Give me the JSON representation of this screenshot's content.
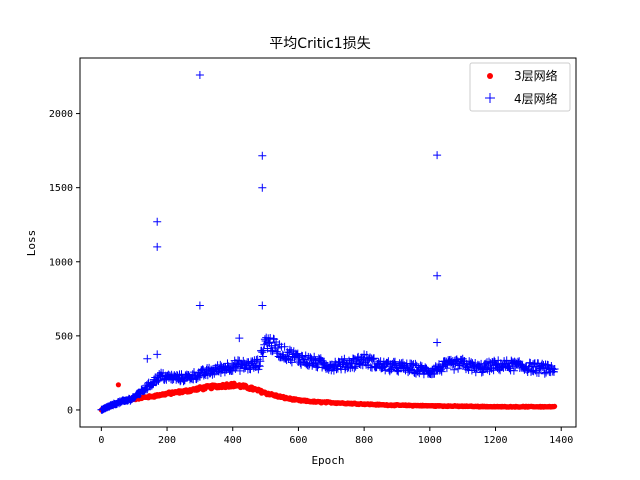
{
  "chart_data": {
    "type": "scatter",
    "title": "平均Critic1损失",
    "xlabel": "Epoch",
    "ylabel": "Loss",
    "xlim": [
      -65,
      1445
    ],
    "ylim": [
      -115,
      2375
    ],
    "xticks": [
      0,
      200,
      400,
      600,
      800,
      1000,
      1200,
      1400
    ],
    "xtick_labels": [
      "0",
      "200",
      "400",
      "600",
      "800",
      "1000",
      "1200",
      "1400"
    ],
    "yticks": [
      0,
      500,
      1000,
      1500,
      2000
    ],
    "ytick_labels": [
      "0",
      "500",
      "1000",
      "1500",
      "2000"
    ],
    "legend_position": "upper-right",
    "grid": false,
    "series": [
      {
        "name": "3层网络",
        "marker": "circle",
        "color": "#ff0000",
        "keypoints": [
          [
            0,
            0
          ],
          [
            20,
            15
          ],
          [
            40,
            35
          ],
          [
            60,
            60
          ],
          [
            80,
            70
          ],
          [
            100,
            75
          ],
          [
            150,
            90
          ],
          [
            200,
            110
          ],
          [
            250,
            125
          ],
          [
            300,
            145
          ],
          [
            350,
            160
          ],
          [
            400,
            170
          ],
          [
            450,
            150
          ],
          [
            500,
            115
          ],
          [
            550,
            85
          ],
          [
            600,
            65
          ],
          [
            650,
            55
          ],
          [
            700,
            50
          ],
          [
            750,
            45
          ],
          [
            800,
            40
          ],
          [
            850,
            35
          ],
          [
            900,
            32
          ],
          [
            1000,
            28
          ],
          [
            1100,
            25
          ],
          [
            1200,
            22
          ],
          [
            1300,
            22
          ],
          [
            1380,
            22
          ]
        ],
        "outliers": [
          [
            52,
            170
          ]
        ]
      },
      {
        "name": "4层网络",
        "marker": "plus",
        "color": "#0000ff",
        "keypoints": [
          [
            0,
            0
          ],
          [
            20,
            20
          ],
          [
            40,
            40
          ],
          [
            60,
            55
          ],
          [
            80,
            65
          ],
          [
            100,
            85
          ],
          [
            120,
            120
          ],
          [
            150,
            175
          ],
          [
            180,
            230
          ],
          [
            200,
            220
          ],
          [
            250,
            215
          ],
          [
            300,
            240
          ],
          [
            350,
            270
          ],
          [
            400,
            300
          ],
          [
            450,
            300
          ],
          [
            480,
            310
          ],
          [
            500,
            470
          ],
          [
            550,
            390
          ],
          [
            600,
            350
          ],
          [
            650,
            320
          ],
          [
            700,
            300
          ],
          [
            750,
            310
          ],
          [
            800,
            340
          ],
          [
            850,
            300
          ],
          [
            900,
            290
          ],
          [
            950,
            280
          ],
          [
            1000,
            260
          ],
          [
            1050,
            300
          ],
          [
            1100,
            310
          ],
          [
            1150,
            280
          ],
          [
            1200,
            300
          ],
          [
            1250,
            300
          ],
          [
            1300,
            290
          ],
          [
            1380,
            270
          ]
        ],
        "outliers": [
          [
            300,
            2260
          ],
          [
            490,
            1715
          ],
          [
            490,
            1500
          ],
          [
            1022,
            1720
          ],
          [
            170,
            1270
          ],
          [
            170,
            1100
          ],
          [
            1022,
            905
          ],
          [
            300,
            705
          ],
          [
            490,
            705
          ],
          [
            420,
            485
          ],
          [
            1022,
            455
          ],
          [
            170,
            375
          ],
          [
            140,
            345
          ]
        ]
      }
    ]
  }
}
